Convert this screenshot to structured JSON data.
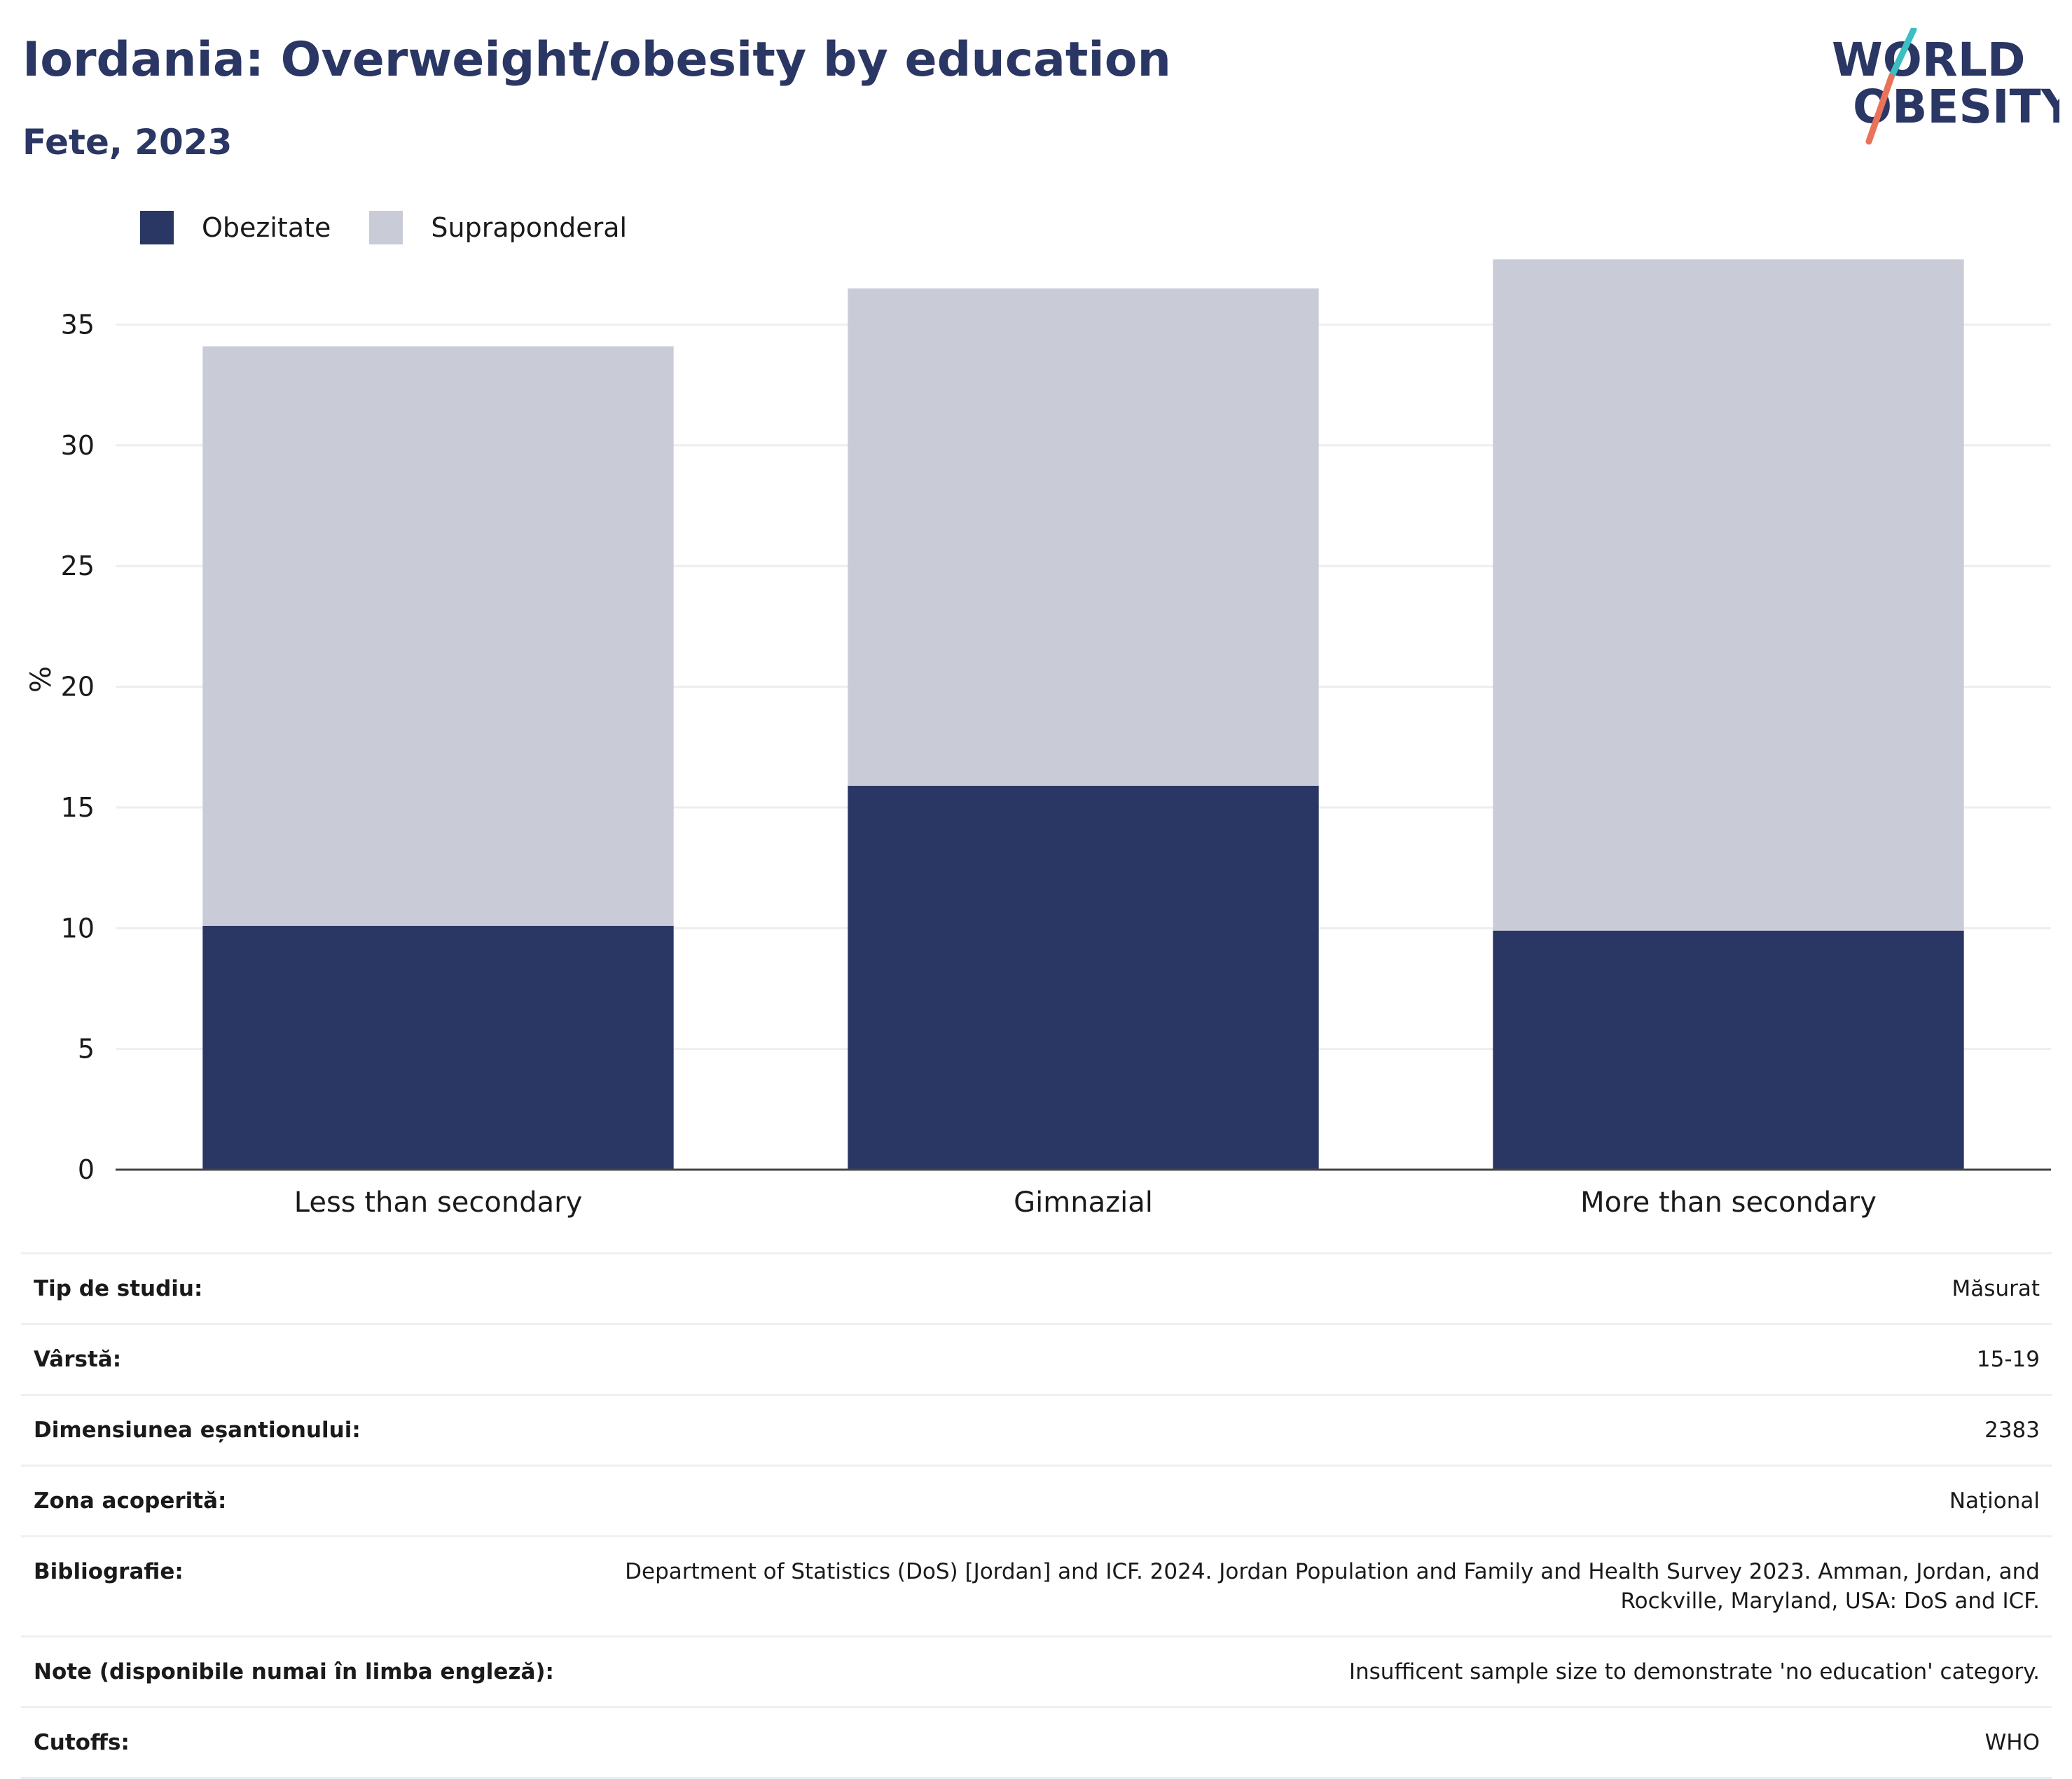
{
  "header": {
    "title": "Iordania: Overweight/obesity by education",
    "subtitle": "Fete, 2023"
  },
  "logo": {
    "line1": "WORLD",
    "line2": "OBESITY",
    "accent_colors": [
      "#3bbfc1",
      "#e8735a"
    ]
  },
  "colors": {
    "obesity": "#2a3663",
    "overweight": "#c9cbd7",
    "gridline": "#eceef1",
    "axis": "#444444"
  },
  "chart_data": {
    "type": "bar",
    "stacked": true,
    "categories": [
      "Less than secondary",
      "Gimnazial",
      "More than secondary"
    ],
    "series": [
      {
        "name": "Obezitate",
        "color": "#2a3663",
        "values": [
          10.1,
          15.9,
          9.9
        ]
      },
      {
        "name": "Supraponderal",
        "color": "#c9cbd7",
        "values": [
          24.0,
          20.6,
          27.8
        ]
      }
    ],
    "ylabel": "%",
    "ylim": [
      0,
      38
    ],
    "yticks": [
      0,
      5,
      10,
      15,
      20,
      25,
      30,
      35
    ],
    "grid": true,
    "legend_position": "top-left"
  },
  "info_rows": [
    {
      "label": "Tip de studiu:",
      "value": "Măsurat"
    },
    {
      "label": "Vârstă:",
      "value": "15-19"
    },
    {
      "label": "Dimensiunea eșantionului:",
      "value": "2383"
    },
    {
      "label": "Zona acoperită:",
      "value": "Național"
    },
    {
      "label": "Bibliografie:",
      "value": "Department of Statistics (DoS) [Jordan] and ICF. 2024. Jordan Population and Family and Health Survey 2023. Amman, Jordan, and Rockville, Maryland, USA: DoS and ICF."
    },
    {
      "label": "Note (disponibile numai în limba engleză):",
      "value": "Insufficent sample size to demonstrate 'no education' category."
    },
    {
      "label": "Cutoffs:",
      "value": "WHO"
    }
  ]
}
